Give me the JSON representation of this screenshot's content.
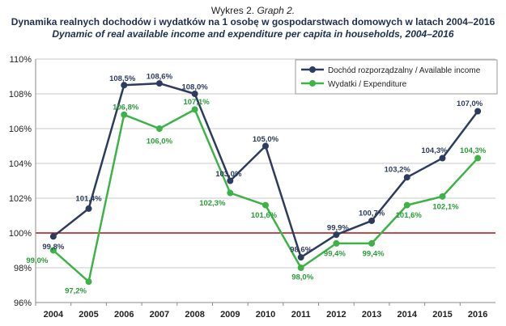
{
  "header": {
    "line1_prefix": "Wykres 2.",
    "line1_italic": "Graph 2.",
    "title_pl": "Dynamika realnych dochodów i wydatków na 1 osobę w gospodarstwach domowych w latach 2004–2016",
    "title_en": "Dynamic of real available income and expenditure per capita in households, 2004–2016"
  },
  "colors": {
    "income": "#2d3c5e",
    "expenditure": "#3db347",
    "expenditure_labels": "#2a9d3a",
    "reference_line": "#b01010",
    "grid": "#c9c9c9"
  },
  "chart_data": {
    "type": "line",
    "categories": [
      "2004",
      "2005",
      "2006",
      "2007",
      "2008",
      "2009",
      "2010",
      "2011",
      "2012",
      "2013",
      "2014",
      "2015",
      "2016"
    ],
    "series": [
      {
        "name": "Dochód rozporządzalny / Available income",
        "values": [
          99.8,
          101.4,
          108.5,
          108.6,
          108.0,
          103.0,
          105.0,
          98.6,
          99.9,
          100.7,
          103.2,
          104.3,
          107.0
        ],
        "labels": [
          "99,8%",
          "101,4%",
          "108,5%",
          "108,6%",
          "108,0%",
          "103,0%",
          "105,0%",
          "98,6%",
          "99,9%",
          "100,7%",
          "103,2%",
          "104,3%",
          "107,0%"
        ]
      },
      {
        "name": "Wydatki / Expenditure",
        "values": [
          99.0,
          97.2,
          106.8,
          106.0,
          107.1,
          102.3,
          101.6,
          98.0,
          99.4,
          99.4,
          101.6,
          102.1,
          104.3
        ],
        "labels": [
          "99,0%",
          "97,2%",
          "106,8%",
          "106,0%",
          "107,1%",
          "102,3%",
          "101,6%",
          "98,0%",
          "99,4%",
          "99,4%",
          "101,6%",
          "102,1%",
          "104,3%"
        ]
      }
    ],
    "yticks": [
      "96%",
      "98%",
      "100%",
      "102%",
      "104%",
      "106%",
      "108%",
      "110%"
    ],
    "ylim": [
      96,
      110
    ],
    "reference_value": 100,
    "grid": true,
    "legend_position": "top-right"
  }
}
